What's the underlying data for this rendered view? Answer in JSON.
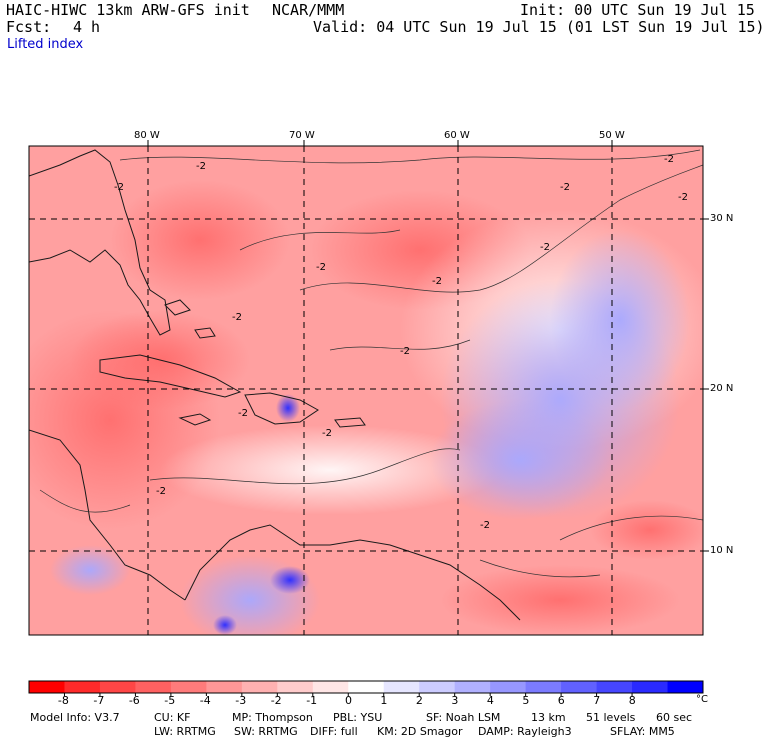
{
  "header": {
    "model": "HAIC-HIWC 13km ARW-GFS init",
    "org": "NCAR/MMM",
    "init": "Init: 00 UTC Sun 19 Jul 15",
    "fcst_label": "Fcst:",
    "fcst_value": "4 h",
    "valid": "Valid: 04 UTC Sun 19 Jul 15 (01 LST Sun 19 Jul 15)",
    "field": "Lifted index"
  },
  "map": {
    "lon_labels": [
      "80 W",
      "70 W",
      "60 W",
      "50 W"
    ],
    "lat_labels": [
      "30 N",
      "20 N",
      "10 N"
    ],
    "contour_labels": [
      "-2",
      "-2",
      "-2",
      "-2",
      "-2",
      "-2",
      "-2",
      "-2",
      "-2",
      "-2",
      "-2",
      "-2",
      "-2",
      "-2"
    ]
  },
  "colorbar": {
    "unit": "°C",
    "ticks": [
      "-8",
      "-7",
      "-6",
      "-5",
      "-4",
      "-3",
      "-2",
      "-1",
      "0",
      "1",
      "2",
      "3",
      "4",
      "5",
      "6",
      "7",
      "8"
    ],
    "colors": [
      "#ff0000",
      "#ff2a2a",
      "#ff4646",
      "#ff6161",
      "#ff7b7b",
      "#ff9797",
      "#ffb1b1",
      "#ffcccc",
      "#ffe6e6",
      "#ffffff",
      "#e6e6ff",
      "#ccccff",
      "#b1b1ff",
      "#9797ff",
      "#7b7bff",
      "#6161ff",
      "#4646ff",
      "#2a2aff",
      "#0000ff"
    ]
  },
  "footer": {
    "line1": [
      {
        "label": "Model Info: V3.7"
      },
      {
        "label": "CU: KF"
      },
      {
        "label": "MP: Thompson"
      },
      {
        "label": "PBL: YSU"
      },
      {
        "label": "SF: Noah LSM"
      },
      {
        "label": "13 km"
      },
      {
        "label": "51 levels"
      },
      {
        "label": "60 sec"
      }
    ],
    "line2": [
      {
        "label": "LW: RRTMG"
      },
      {
        "label": "SW: RRTMG"
      },
      {
        "label": "DIFF: full"
      },
      {
        "label": "KM: 2D Smagor"
      },
      {
        "label": "DAMP: Rayleigh3"
      },
      {
        "label": "SFLAY: MM5"
      }
    ]
  }
}
